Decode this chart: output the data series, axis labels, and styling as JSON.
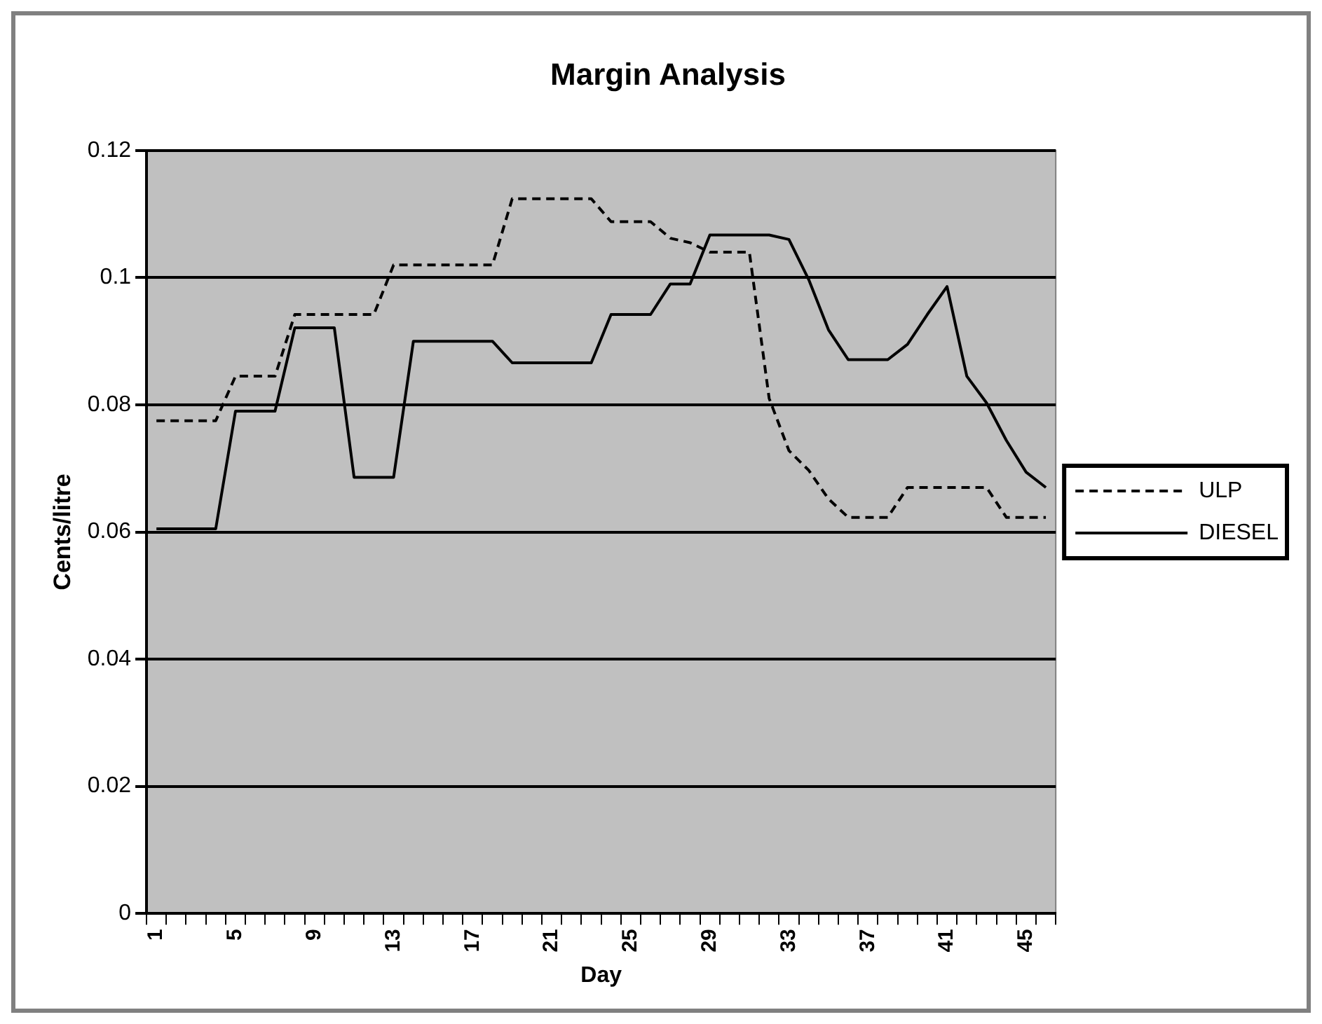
{
  "chart_data": {
    "type": "line",
    "title": "Margin Analysis",
    "xlabel": "Day",
    "ylabel": "Cents/litre",
    "categories": [
      "1",
      null,
      null,
      null,
      "5",
      null,
      null,
      null,
      "9",
      null,
      null,
      null,
      "13",
      null,
      null,
      null,
      "17",
      null,
      null,
      null,
      "21",
      null,
      null,
      null,
      "25",
      null,
      null,
      null,
      "29",
      null,
      null,
      null,
      "33",
      null,
      null,
      null,
      "37",
      null,
      null,
      null,
      "41",
      null,
      null,
      null,
      "45",
      null
    ],
    "series": [
      {
        "name": "ULP",
        "color": "#000000",
        "line_style": "dashed",
        "values": [
          0.0775,
          0.0775,
          0.0775,
          0.0775,
          0.0845,
          0.0845,
          0.0845,
          0.0942,
          0.0942,
          0.0942,
          0.0942,
          0.0942,
          0.102,
          0.102,
          0.102,
          0.102,
          0.102,
          0.102,
          0.1124,
          0.1124,
          0.1124,
          0.1124,
          0.1124,
          0.1088,
          0.1088,
          0.1088,
          0.1062,
          0.1055,
          0.104,
          0.104,
          0.104,
          0.081,
          0.0728,
          0.0697,
          0.0652,
          0.0623,
          0.0623,
          0.0623,
          0.067,
          0.067,
          0.067,
          0.067,
          0.067,
          0.0623,
          0.0623,
          0.0623
        ]
      },
      {
        "name": "DIESEL",
        "color": "#000000",
        "line_style": "solid",
        "values": [
          0.0605,
          0.0605,
          0.0605,
          0.0605,
          0.079,
          0.079,
          0.079,
          0.0921,
          0.0921,
          0.0921,
          0.0686,
          0.0686,
          0.0686,
          0.09,
          0.09,
          0.09,
          0.09,
          0.09,
          0.0866,
          0.0866,
          0.0866,
          0.0866,
          0.0866,
          0.0942,
          0.0942,
          0.0942,
          0.099,
          0.099,
          0.1067,
          0.1067,
          0.1067,
          0.1067,
          0.106,
          0.0997,
          0.0918,
          0.0871,
          0.0871,
          0.0871,
          0.0895,
          0.0942,
          0.0986,
          0.0845,
          0.0803,
          0.0744,
          0.0694,
          0.067
        ]
      }
    ],
    "ylim": [
      0,
      0.12
    ],
    "yticks": [
      0,
      0.02,
      0.04,
      0.06,
      0.08,
      0.1,
      0.12
    ],
    "grid": "y",
    "legend": "right",
    "marker": "none"
  }
}
